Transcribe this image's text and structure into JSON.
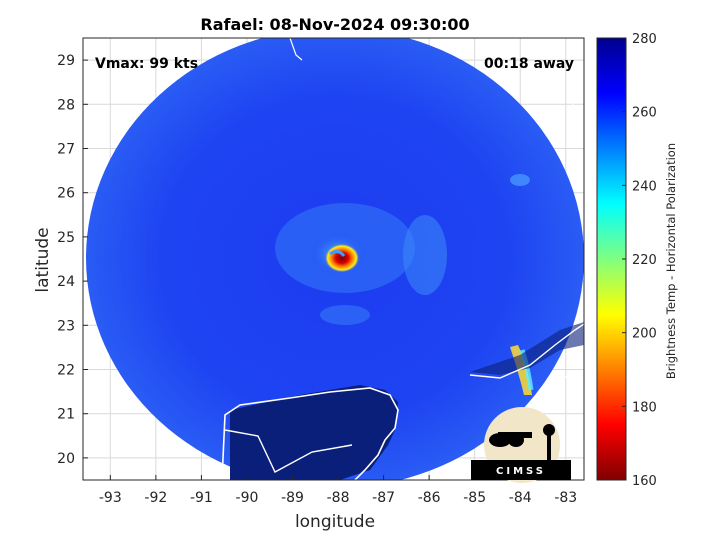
{
  "title": "Rafael: 08-Nov-2024 09:30:00",
  "vmax_label": "Vmax: 99 kts",
  "away_label": "00:18 away",
  "xlabel": "longitude",
  "ylabel": "latitude",
  "x_ticks": [
    "-93",
    "-92",
    "-91",
    "-90",
    "-89",
    "-88",
    "-87",
    "-86",
    "-85",
    "-84",
    "-83"
  ],
  "y_ticks": [
    "20",
    "21",
    "22",
    "23",
    "24",
    "25",
    "26",
    "27",
    "28",
    "29"
  ],
  "colorbar": {
    "label": "Brightness Temp - Horizontal Polarization",
    "ticks": [
      "160",
      "180",
      "200",
      "220",
      "240",
      "260",
      "280"
    ],
    "range": [
      160,
      280
    ],
    "colormap": [
      "#7f0000",
      "#ff0000",
      "#ff8000",
      "#ffff00",
      "#80ff80",
      "#00ffff",
      "#0080ff",
      "#0000ff",
      "#00008f"
    ]
  },
  "map_extent": {
    "lon": [
      -93.6,
      -82.6
    ],
    "lat": [
      19.5,
      29.5
    ]
  },
  "logo_text": "CIMSS",
  "colors": {
    "background_scene": "#1f3ff0",
    "land": "#0a1f7a",
    "coastline": "#ffffff"
  }
}
